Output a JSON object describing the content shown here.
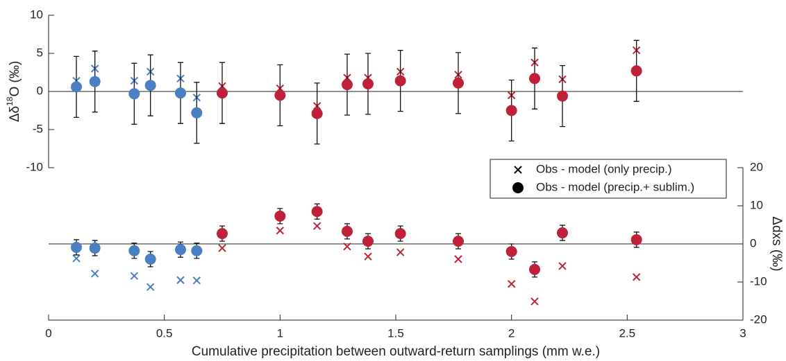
{
  "chart_data": {
    "type": "scatter",
    "xlabel": "Cumulative precipitation between outward-return samplings (mm w.e.)",
    "ylabel": [
      "Δδ",
      "18",
      "O (‰)"
    ],
    "y2label": "Δdxs (‰)",
    "x": [
      0.12,
      0.2,
      0.37,
      0.44,
      0.57,
      0.64,
      0.75,
      1.0,
      1.16,
      1.29,
      1.38,
      1.52,
      1.77,
      2.0,
      2.1,
      2.22,
      2.54
    ],
    "xlim": [
      0,
      3
    ],
    "xticks": [
      0,
      0.5,
      1,
      1.5,
      2,
      2.5,
      3
    ],
    "ylim": [
      -10,
      10
    ],
    "yticks": [
      -10,
      -5,
      0,
      5,
      10
    ],
    "y2lim": [
      -20,
      20
    ],
    "y2ticks": [
      -20,
      -10,
      0,
      10,
      20
    ],
    "legend": "right",
    "colors": [
      "#4a7fc1",
      "#4a7fc1",
      "#4a7fc1",
      "#4a7fc1",
      "#4a7fc1",
      "#4a7fc1",
      "#c0213a",
      "#c0213a",
      "#c0213a",
      "#c0213a",
      "#c0213a",
      "#c0213a",
      "#c0213a",
      "#c0213a",
      "#c0213a",
      "#c0213a",
      "#c0213a"
    ],
    "series": [
      {
        "name": "Obs - model (only precip.)",
        "marker": "x",
        "axis": "y",
        "values": [
          1.4,
          3.0,
          1.4,
          2.6,
          1.7,
          -0.8,
          0.7,
          0.4,
          -1.9,
          1.8,
          1.8,
          2.6,
          2.2,
          -0.5,
          3.8,
          1.6,
          5.4
        ]
      },
      {
        "name": "Obs - model (precip.+ sublim.)",
        "marker": "o",
        "axis": "y",
        "values": [
          0.6,
          1.3,
          -0.3,
          0.8,
          -0.2,
          -2.8,
          -0.2,
          -0.5,
          -2.9,
          0.9,
          1.0,
          1.4,
          1.1,
          -2.5,
          1.7,
          -0.6,
          2.7
        ],
        "errors": [
          4,
          4,
          4,
          4,
          4,
          4,
          4,
          4,
          4,
          4,
          4,
          4,
          4,
          4,
          4,
          4,
          4
        ]
      },
      {
        "marker": "x",
        "axis": "y2",
        "values": [
          -3.8,
          -7.8,
          -8.4,
          -11.3,
          -9.5,
          -9.6,
          -1.1,
          3.5,
          4.7,
          -0.7,
          -3.3,
          -2.2,
          -4.0,
          -10.5,
          -15.1,
          -5.8,
          -8.7
        ]
      },
      {
        "marker": "o",
        "axis": "y2",
        "values": [
          -0.9,
          -1.1,
          -1.8,
          -4.0,
          -1.5,
          -1.8,
          2.7,
          7.3,
          8.5,
          3.3,
          0.7,
          2.7,
          0.7,
          -2.0,
          -6.7,
          2.9,
          1.1
        ],
        "errors": [
          2,
          2,
          2,
          2,
          2,
          2,
          2,
          2,
          2,
          2,
          2,
          2,
          2,
          2,
          2,
          2,
          2
        ]
      }
    ]
  }
}
